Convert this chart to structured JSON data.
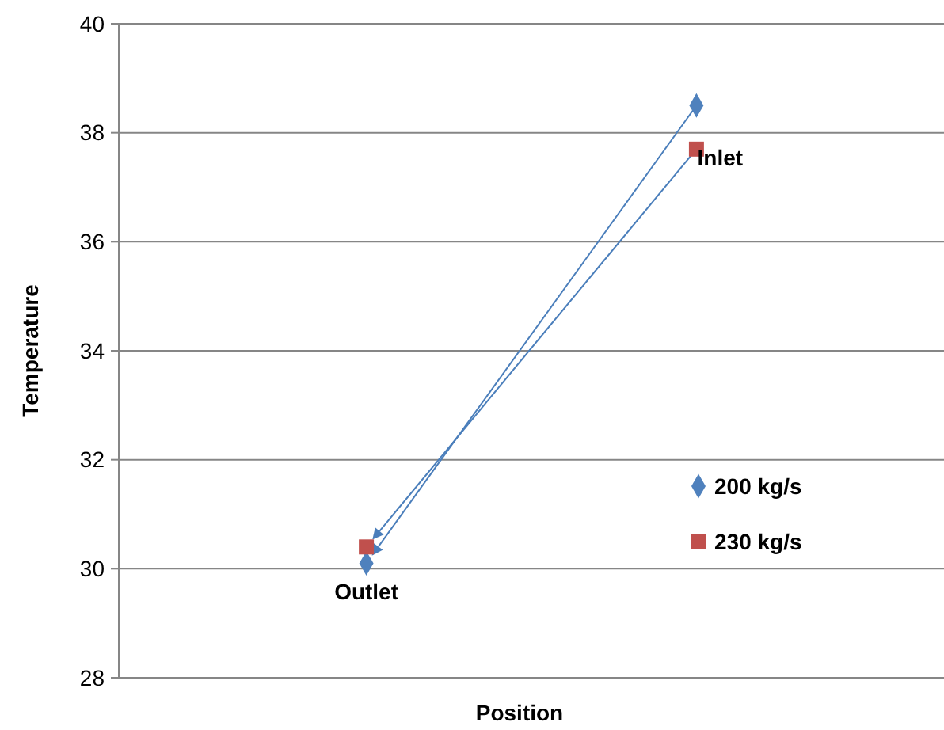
{
  "chart_data": {
    "type": "scatter",
    "xlabel": "Position",
    "ylabel": "Temperature",
    "categories": [
      null,
      null
    ],
    "series": [
      {
        "name": "200 kg/s",
        "color": "#4f81bd",
        "values": [
          30.1,
          38.5
        ],
        "marker": "diamond"
      },
      {
        "name": "230 kg/s",
        "color": "#c0504d",
        "values": [
          30.4,
          37.7
        ],
        "marker": "square"
      }
    ],
    "annotations": [
      "Outlet",
      "Inlet"
    ],
    "ylim": [
      28,
      40
    ],
    "yticks": [
      28,
      30,
      32,
      34,
      36,
      38,
      40
    ],
    "grid": "y",
    "legend": "right"
  }
}
